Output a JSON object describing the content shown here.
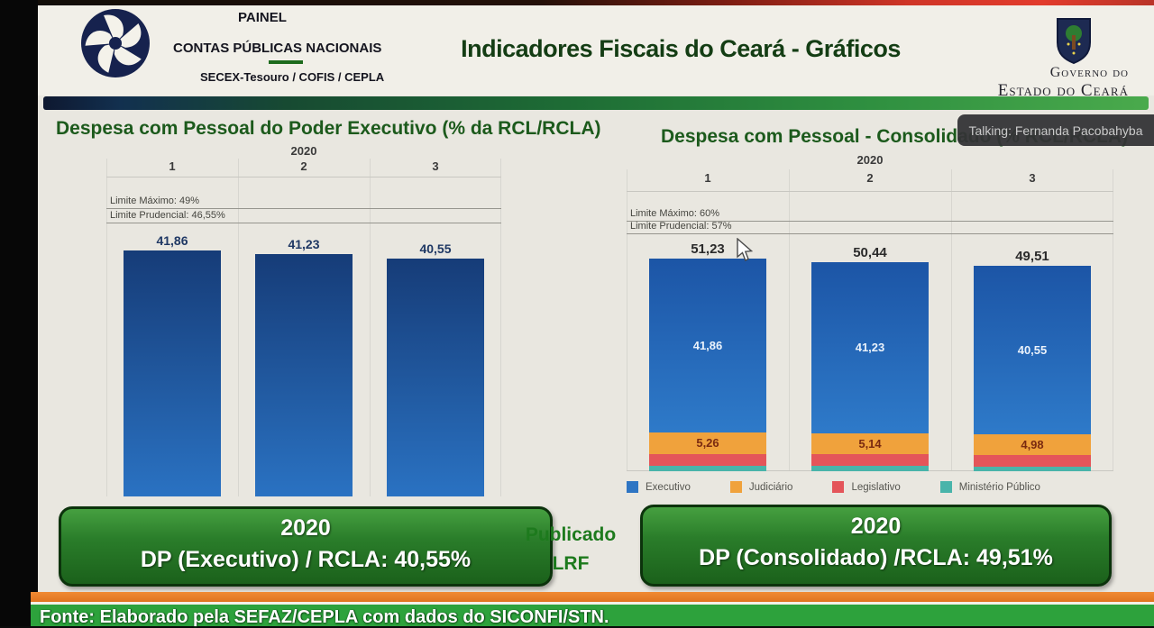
{
  "header": {
    "logo_block": {
      "line1": "PAINEL",
      "line2": "CONTAS PÚBLICAS NACIONAIS",
      "line3": "SECEX-Tesouro / COFIS / CEPLA"
    },
    "title": "Indicadores Fiscais do Ceará - Gráficos",
    "government": {
      "line1": "Governo do",
      "line2": "Estado do Ceará"
    }
  },
  "overlay": {
    "text": "Talking: Fernanda Pacobahyba"
  },
  "chart_data": [
    {
      "type": "bar",
      "title": "Despesa com Pessoal do Poder Executivo (% da RCL/RCLA)",
      "group_label": "2020",
      "categories": [
        "1",
        "2",
        "3"
      ],
      "values": [
        41.86,
        41.23,
        40.55
      ],
      "value_labels": [
        "41,86",
        "41,23",
        "40,55"
      ],
      "reference_lines": [
        {
          "label": "Limite Máximo: 49%",
          "value": 49
        },
        {
          "label": "Limite Prudencial: 46,55%",
          "value": 46.55
        }
      ],
      "ylim": [
        0,
        60
      ],
      "grid": "column-separators",
      "bar_color_top": "#163c78",
      "bar_color_bottom": "#2a72c2",
      "label_color": "#1f3864"
    },
    {
      "type": "stacked-bar",
      "title": "Despesa com Pessoal - Consolidado (% RCL/RCLA)",
      "group_label": "2020",
      "categories": [
        "1",
        "2",
        "3"
      ],
      "totals": [
        51.23,
        50.44,
        49.51
      ],
      "total_labels": [
        "51,23",
        "50,44",
        "49,51"
      ],
      "series": [
        {
          "name": "Executivo",
          "color": "#2e75c3",
          "color_top": "#1c55a6",
          "color_bottom": "#2e7ac9",
          "values": [
            41.86,
            41.23,
            40.55
          ],
          "labels": [
            "41,86",
            "41,23",
            "40,55"
          ],
          "label_color": "#eaf2fb"
        },
        {
          "name": "Judiciário",
          "color": "#f0a23c",
          "values": [
            5.26,
            5.14,
            4.98
          ],
          "labels": [
            "5,26",
            "5,14",
            "4,98"
          ],
          "label_color": "#7a2a10"
        },
        {
          "name": "Legislativo",
          "color": "#e4555a",
          "values": [
            2.9,
            2.85,
            2.8
          ],
          "estimated": true
        },
        {
          "name": "Ministério Público",
          "color": "#49b4aa",
          "values": [
            1.21,
            1.22,
            1.18
          ],
          "estimated": true
        }
      ],
      "reference_lines": [
        {
          "label": "Limite Máximo: 60%",
          "value": 60
        },
        {
          "label": "Limite Prudencial: 57%",
          "value": 57
        }
      ],
      "ylim": [
        0,
        77
      ],
      "grid": "column-separators",
      "legend_position": "bottom",
      "legend": [
        "Executivo",
        "Judiciário",
        "Legislativo",
        "Ministério Público"
      ]
    }
  ],
  "summary": {
    "left_box": {
      "year": "2020",
      "text": "DP (Executivo) / RCLA: 40,55%"
    },
    "middle": {
      "line1": "Publicado",
      "line2": "LRF"
    },
    "right_box": {
      "year": "2020",
      "text": "DP (Consolidado) /RCLA: 49,51%"
    }
  },
  "footer": {
    "text": "Fonte: Elaborado pela SEFAZ/CEPLA com dados do SICONFI/STN."
  }
}
